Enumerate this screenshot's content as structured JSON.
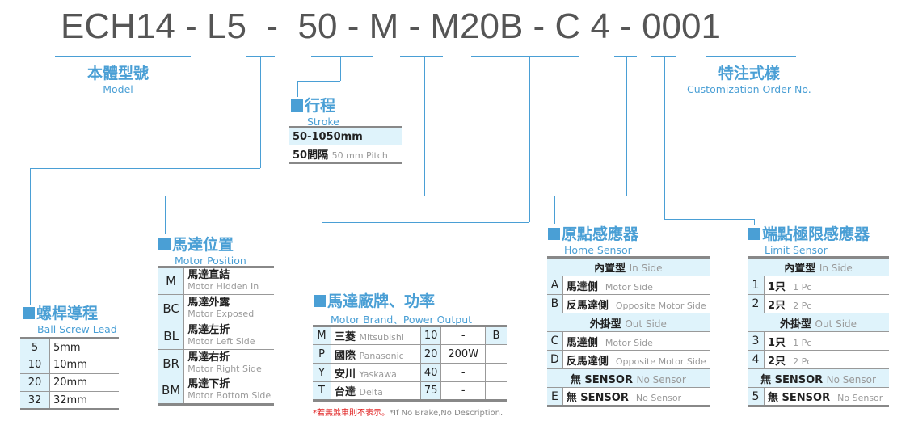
{
  "code": {
    "parts": [
      "ECH14",
      "-",
      "L",
      "5",
      "-",
      "50",
      "-",
      "M",
      "-",
      "M20B",
      "-",
      "C",
      "4",
      "-",
      "0001"
    ]
  },
  "model": {
    "zh": "本體型號",
    "en": "Model"
  },
  "custom": {
    "zh": "特注式樣",
    "en": "Customization Order No."
  },
  "stroke": {
    "zh": "行程",
    "en": "Stroke",
    "rows": [
      {
        "a": "50-1050mm",
        "b": ""
      },
      {
        "a": "50間隔",
        "b": "50 mm Pitch"
      }
    ]
  },
  "lead": {
    "zh": "螺桿導程",
    "en": "Ball Screw Lead",
    "rows": [
      [
        "5",
        "5mm"
      ],
      [
        "10",
        "10mm"
      ],
      [
        "20",
        "20mm"
      ],
      [
        "32",
        "32mm"
      ]
    ]
  },
  "position": {
    "zh": "馬達位置",
    "en": "Motor Position",
    "rows": [
      [
        "M",
        "馬達直結",
        "Motor Hidden In"
      ],
      [
        "BC",
        "馬達外露",
        "Motor Exposed"
      ],
      [
        "BL",
        "馬達左折",
        "Motor Left Side"
      ],
      [
        "BR",
        "馬達右折",
        "Motor Right Side"
      ],
      [
        "BM",
        "馬達下折",
        "Motor Bottom Side"
      ]
    ]
  },
  "brand": {
    "zh": "馬達廠牌、功率",
    "en": "Motor Brand、Power Output",
    "rows": [
      [
        "M",
        "三菱",
        "Mitsubishi",
        "10",
        "-",
        "B"
      ],
      [
        "P",
        "國際",
        "Panasonic",
        "20",
        "200W",
        ""
      ],
      [
        "Y",
        "安川",
        "Yaskawa",
        "40",
        "-",
        ""
      ],
      [
        "T",
        "台達",
        "Delta",
        "75",
        "-",
        ""
      ]
    ],
    "note_zh": "*若無煞車則不表示。",
    "note_en": "*If No Brake,No Description."
  },
  "home": {
    "zh": "原點感應器",
    "en": "Home Sensor",
    "rows": [
      {
        "h": "內置型",
        "he": "In Side"
      },
      {
        "k": "A",
        "v": "馬達側",
        "e": "Motor Side"
      },
      {
        "k": "B",
        "v": "反馬達側",
        "e": "Opposite Motor Side"
      },
      {
        "h": "外掛型",
        "he": "Out Side"
      },
      {
        "k": "C",
        "v": "馬達側",
        "e": "Motor Side"
      },
      {
        "k": "D",
        "v": "反馬達側",
        "e": "Opposite Motor Side"
      },
      {
        "h": "無 SENSOR",
        "he": "No Sensor"
      },
      {
        "k": "E",
        "v": "無 SENSOR",
        "e": "No Sensor"
      }
    ]
  },
  "limit": {
    "zh": "端點極限感應器",
    "en": "Limit Sensor",
    "rows": [
      {
        "h": "內置型",
        "he": "In Side"
      },
      {
        "k": "1",
        "v": "1只",
        "e": "1 Pc"
      },
      {
        "k": "2",
        "v": "2只",
        "e": "2 Pc"
      },
      {
        "h": "外掛型",
        "he": "Out Side"
      },
      {
        "k": "3",
        "v": "1只",
        "e": "1 Pc"
      },
      {
        "k": "4",
        "v": "2只",
        "e": "2 Pc"
      },
      {
        "h": "無 SENSOR",
        "he": "No Sensor"
      },
      {
        "k": "5",
        "v": "無 SENSOR",
        "e": "No Sensor"
      }
    ]
  },
  "colors": {
    "accent": "#4a9fd5",
    "cell": "#dff3fb"
  }
}
